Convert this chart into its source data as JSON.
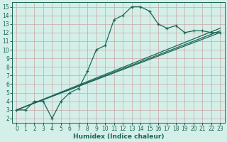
{
  "xlabel": "Humidex (Indice chaleur)",
  "xlim": [
    -0.5,
    23.5
  ],
  "ylim": [
    1.5,
    15.5
  ],
  "xticks": [
    0,
    1,
    2,
    3,
    4,
    5,
    6,
    7,
    8,
    9,
    10,
    11,
    12,
    13,
    14,
    15,
    16,
    17,
    18,
    19,
    20,
    21,
    22,
    23
  ],
  "yticks": [
    2,
    3,
    4,
    5,
    6,
    7,
    8,
    9,
    10,
    11,
    12,
    13,
    14,
    15
  ],
  "bg_color": "#d4eee8",
  "grid_color": "#c8a8a8",
  "line_color": "#1a6655",
  "series1_x": [
    0,
    1,
    2,
    3,
    4,
    5,
    6,
    7,
    8,
    9,
    10,
    11,
    12,
    13,
    14,
    15,
    16,
    17,
    18,
    19,
    20,
    21,
    22,
    23
  ],
  "series1_y": [
    3,
    3,
    4,
    4,
    2,
    4,
    5,
    5.5,
    7.5,
    10,
    10.5,
    13.5,
    14,
    15,
    15,
    14.5,
    13,
    12.5,
    12.8,
    12,
    12.2,
    12.2,
    12,
    12
  ],
  "line2_x": [
    0,
    23
  ],
  "line2_y": [
    3,
    12
  ],
  "line3_x": [
    0,
    23
  ],
  "line3_y": [
    3,
    12.5
  ],
  "line4_x": [
    0,
    23
  ],
  "line4_y": [
    3,
    12.2
  ],
  "xlabel_fontsize": 6.5,
  "tick_fontsize": 5.5
}
